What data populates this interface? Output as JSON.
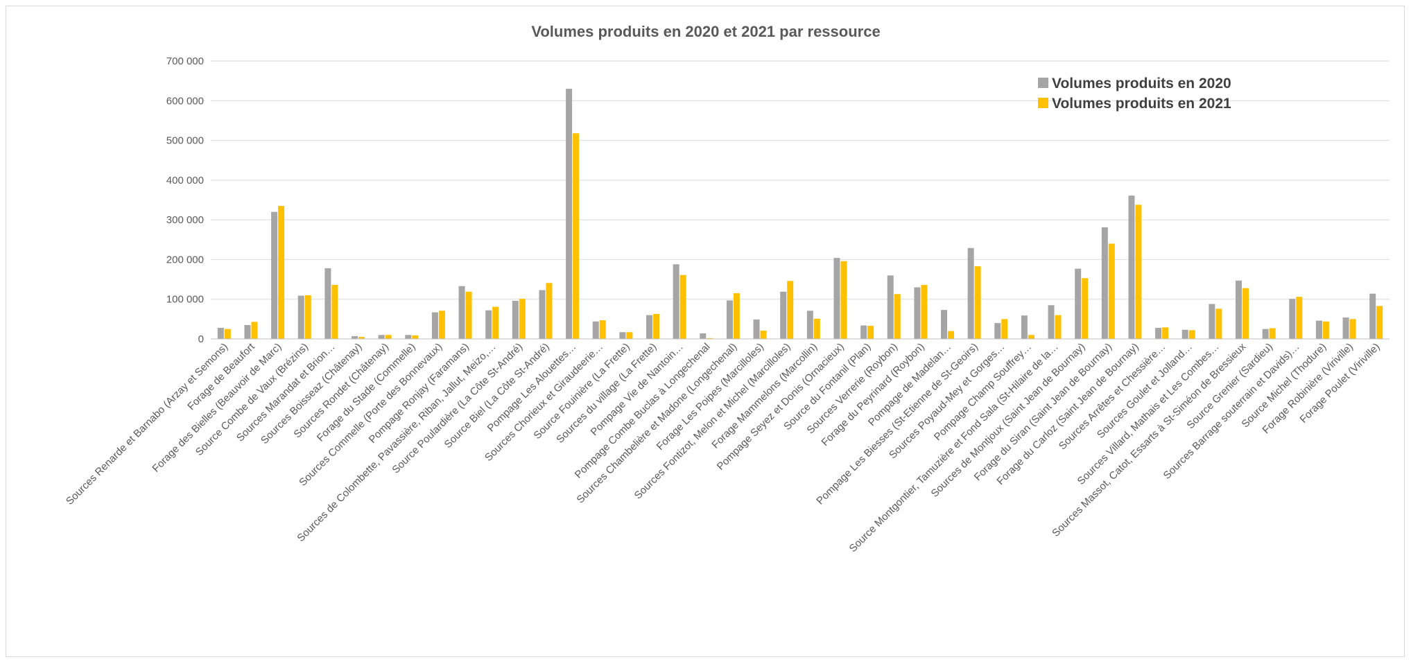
{
  "chart_data": {
    "type": "bar",
    "title": "Volumes produits en 2020 et 2021 par ressource",
    "xlabel": "",
    "ylabel": "",
    "ylim": [
      0,
      700000
    ],
    "yticks": [
      0,
      100000,
      200000,
      300000,
      400000,
      500000,
      600000,
      700000
    ],
    "ytick_labels": [
      "0",
      "100 000",
      "200 000",
      "300 000",
      "400 000",
      "500 000",
      "600 000",
      "700 000"
    ],
    "grid": true,
    "legend_position": "top-right",
    "categories": [
      "Sources Renarde et Barnabo (Arzay et Semons)",
      "Forage de Beaufort",
      "Forage des Bielles (Beauvoir de Marc)",
      "Source Combe de Vaux (Brézins)",
      "Sources Marandat et Brion…",
      "Sources Boisseaz (Châtenay)",
      "Sources Rondet (Châtenay)",
      "Forage du Stade (Commelle)",
      "Sources Commelle (Porte des Bonnevaux)",
      "Pompage Ronjay (Faramans)",
      "Sources de Colombette, Pavassière, Riban, Jallut, Meizo,…",
      "Source Poulardière (La Côte St-André)",
      "Source Biel (La Côte St-André)",
      "Pompage Les Alouettes…",
      "Sources Chorieux et Giraudeerie…",
      "Source Fouinière (La Frette)",
      "Sources du village (La Frette)",
      "Pompage Vie de Nantoin…",
      "Pompage Combe Buclas à Longechenal",
      "Sources Chambelière et Madone (Longechenal)",
      "Forage Les Poipes (Marcilloles)",
      "Sources Fontizot, Melon et Michel (Marcilloles)",
      "Forage Mammelons (Marcollin)",
      "Pompage Seyez et Donis (Ornacieux)",
      "Source du Fontanil (Plan)",
      "Sources Verrerie (Roybon)",
      "Forage du Peyrinard (Roybon)",
      "Pompage de Madelan…",
      "Pompage Les Biesses (St-Etienne de St-Geoirs)",
      "Sources Poyaud-Mey et Gorges…",
      "Pompage Champ Souffrey…",
      "Source Montgontier, Tamuzière et Fond Sala (St-Hilaire de la…",
      "Sources de Montjoux (Saint Jean de Bournay)",
      "Forage du Siran (Saint Jean de Bournay)",
      "Forage du Carloz (Saint Jean de Bournay)",
      "Sources Arrêtes et Chessière…",
      "Sources Goulet et Jolland…",
      "Sources Villard, Mathais et Les Combes…",
      "Sources Massot, Catot, Essarts à St-Siméon de Bressieux",
      "Source Grenier (Sardieu)",
      "Sources Barrage souterrain et Davids)…",
      "Source Michel (Thodure)",
      "Forage Robinière (Viriville)",
      "Forage Poulet (Viriville)"
    ],
    "series": [
      {
        "name": "Volumes produits en 2020",
        "color": "#a5a5a5",
        "values": [
          28000,
          35000,
          320000,
          109000,
          178000,
          7000,
          10000,
          10000,
          67000,
          133000,
          72000,
          96000,
          123000,
          630000,
          44000,
          17000,
          60000,
          188000,
          14000,
          97000,
          49000,
          119000,
          71000,
          204000,
          34000,
          160000,
          130000,
          73000,
          229000,
          40000,
          59000,
          85000,
          177000,
          281000,
          361000,
          28000,
          23000,
          88000,
          147000,
          25000,
          101000,
          46000,
          54000,
          114000
        ]
      },
      {
        "name": "Volumes produits en 2021",
        "color": "#ffc000",
        "values": [
          25000,
          43000,
          335000,
          110000,
          136000,
          5000,
          10000,
          9000,
          71000,
          119000,
          81000,
          101000,
          141000,
          518000,
          47000,
          17000,
          63000,
          161000,
          2000,
          115000,
          21000,
          146000,
          51000,
          196000,
          33000,
          113000,
          136000,
          20000,
          183000,
          50000,
          10000,
          60000,
          153000,
          240000,
          338000,
          29000,
          22000,
          76000,
          128000,
          27000,
          106000,
          44000,
          50000,
          83000
        ]
      }
    ]
  }
}
